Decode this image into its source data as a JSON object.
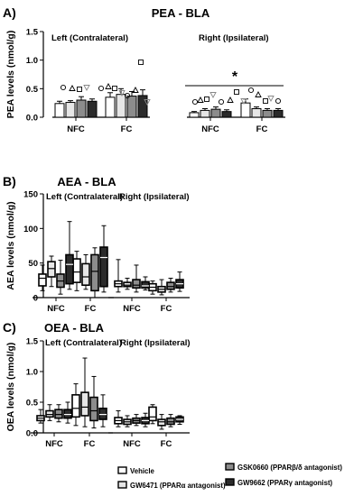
{
  "figure": {
    "legend": [
      {
        "label": "Vehicle",
        "fill": "#ffffff"
      },
      {
        "label": "GW6471 (PPARα antagonist)",
        "fill": "#e6e6e6"
      },
      {
        "label": "GSK0660 (PPARβ/δ antagonist)",
        "fill": "#8c8c8c"
      },
      {
        "label": "GW9662 (PPARγ antagonist)",
        "fill": "#2b2b2b"
      }
    ]
  },
  "chart_data": [
    {
      "type": "bar",
      "panel_letter": "A)",
      "title": "PEA - BLA",
      "ylabel": "PEA levels (nmol/g)",
      "ylim": [
        0,
        1.5
      ],
      "yticks": [
        "0.0",
        "0.5",
        "1.0",
        "1.5"
      ],
      "group_labels": [
        "Left (Contralateral)",
        "Right (Ipsilateral)"
      ],
      "categories": [
        "NFC",
        "FC",
        "NFC",
        "FC"
      ],
      "significance": "*",
      "series": [
        {
          "name": "Vehicle",
          "values": [
            0.24,
            0.35,
            0.08,
            0.25
          ],
          "errors": [
            0.04,
            0.08,
            0.02,
            0.07
          ]
        },
        {
          "name": "GW6471 (PPARα antagonist)",
          "values": [
            0.26,
            0.4,
            0.12,
            0.15
          ],
          "errors": [
            0.03,
            0.1,
            0.03,
            0.03
          ]
        },
        {
          "name": "GSK0660 (PPARβ/δ antagonist)",
          "values": [
            0.3,
            0.37,
            0.14,
            0.12
          ],
          "errors": [
            0.06,
            0.08,
            0.04,
            0.03
          ]
        },
        {
          "name": "GW9662 (PPARγ antagonist)",
          "values": [
            0.28,
            0.38,
            0.1,
            0.12
          ],
          "errors": [
            0.04,
            0.1,
            0.03,
            0.03
          ]
        }
      ]
    },
    {
      "type": "box",
      "panel_letter": "B)",
      "title": "AEA - BLA",
      "ylabel": "AEA levels (nmol/g)",
      "ylim": [
        0,
        150
      ],
      "yticks": [
        "0",
        "50",
        "100",
        "150"
      ],
      "group_labels": [
        "Left (Contralateral)",
        "Right (Ipsilateral)"
      ],
      "categories": [
        "NFC",
        "FC",
        "NFC",
        "FC"
      ],
      "series": [
        {
          "name": "Vehicle",
          "boxes": [
            [
              10,
              17,
              28,
              34,
              47
            ],
            [
              10,
              22,
              37,
              56,
              67
            ],
            [
              8,
              16,
              20,
              24,
              55
            ],
            [
              5,
              10,
              15,
              20,
              24
            ]
          ]
        },
        {
          "name": "GW6471 (PPARα antagonist)",
          "boxes": [
            [
              16,
              30,
              42,
              52,
              60
            ],
            [
              12,
              18,
              30,
              49,
              62
            ],
            [
              12,
              16,
              18,
              22,
              28
            ],
            [
              4,
              8,
              12,
              16,
              26
            ]
          ]
        },
        {
          "name": "GSK0660 (PPARβ/δ antagonist)",
          "boxes": [
            [
              5,
              15,
              24,
              34,
              54
            ],
            [
              0,
              10,
              38,
              62,
              72
            ],
            [
              8,
              14,
              18,
              26,
              47
            ],
            [
              8,
              12,
              16,
              22,
              28
            ]
          ]
        },
        {
          "name": "GW9662 (PPARγ antagonist)",
          "boxes": [
            [
              12,
              20,
              48,
              62,
              110
            ],
            [
              8,
              16,
              58,
              73,
              104
            ],
            [
              11,
              14,
              17,
              23,
              30
            ],
            [
              9,
              14,
              20,
              26,
              37
            ]
          ]
        }
      ]
    },
    {
      "type": "box",
      "panel_letter": "C)",
      "title": "OEA - BLA",
      "ylabel": "OEA levels (nmol/g)",
      "ylim": [
        0,
        1.5
      ],
      "yticks": [
        "0.0",
        "0.5",
        "1.0",
        "1.5"
      ],
      "group_labels": [
        "Left (Contralateral)",
        "Right (Ipsilateral)"
      ],
      "categories": [
        "NFC",
        "FC",
        "NFC",
        "FC"
      ],
      "series": [
        {
          "name": "Vehicle",
          "boxes": [
            [
              0.16,
              0.2,
              0.24,
              0.28,
              0.38
            ],
            [
              0.12,
              0.26,
              0.4,
              0.62,
              0.8
            ],
            [
              0.1,
              0.15,
              0.2,
              0.25,
              0.36
            ],
            [
              0.15,
              0.2,
              0.26,
              0.42,
              0.46
            ]
          ]
        },
        {
          "name": "GW6471 (PPARα antagonist)",
          "boxes": [
            [
              0.2,
              0.26,
              0.3,
              0.36,
              0.46
            ],
            [
              0.1,
              0.28,
              0.42,
              0.66,
              1.22
            ],
            [
              0.1,
              0.14,
              0.18,
              0.22,
              0.28
            ],
            [
              0.06,
              0.12,
              0.18,
              0.22,
              0.3
            ]
          ]
        },
        {
          "name": "GSK0660 (PPARβ/δ antagonist)",
          "boxes": [
            [
              0.18,
              0.24,
              0.3,
              0.38,
              0.46
            ],
            [
              0.08,
              0.2,
              0.36,
              0.58,
              0.92
            ],
            [
              0.12,
              0.16,
              0.2,
              0.24,
              0.3
            ],
            [
              0.1,
              0.14,
              0.18,
              0.24,
              0.3
            ]
          ]
        },
        {
          "name": "GW9662 (PPARγ antagonist)",
          "boxes": [
            [
              0.16,
              0.24,
              0.3,
              0.38,
              0.5
            ],
            [
              0.1,
              0.22,
              0.3,
              0.4,
              0.62
            ],
            [
              0.1,
              0.15,
              0.2,
              0.25,
              0.32
            ],
            [
              0.14,
              0.18,
              0.22,
              0.26,
              0.28
            ]
          ]
        }
      ]
    }
  ]
}
